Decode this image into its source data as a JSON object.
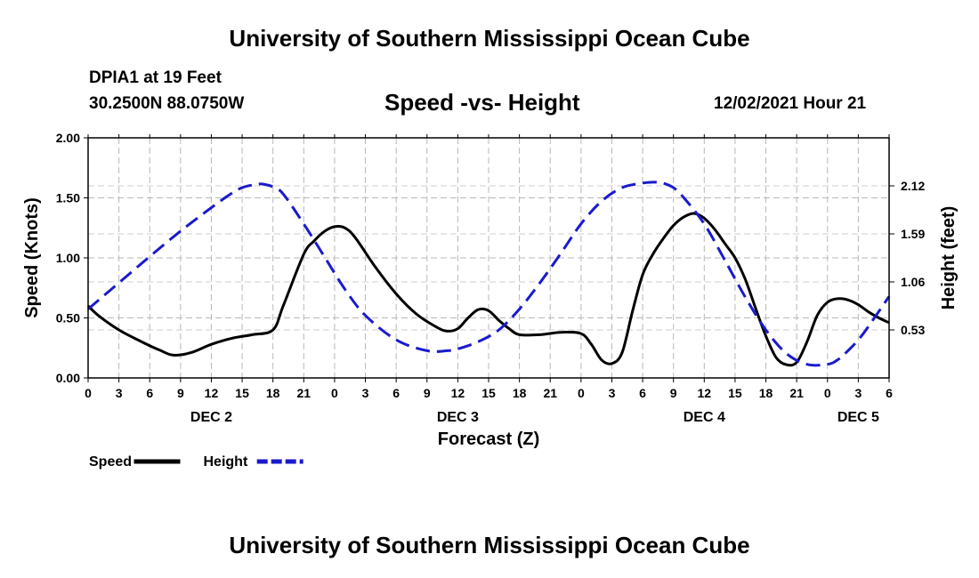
{
  "header": {
    "title": "University of Southern Mississippi Ocean Cube",
    "station": "DPIA1 at 19 Feet",
    "coords": "30.2500N  88.0750W",
    "subtitle": "Speed -vs- Height",
    "datetime": "12/02/2021 Hour 21"
  },
  "footer": {
    "title": "University of Southern Mississippi Ocean Cube"
  },
  "chart_data": {
    "type": "line",
    "xlabel": "Forecast (Z)",
    "ylabel": "Speed (Knots)",
    "ylabel_right": "Height (feet)",
    "xlim": [
      0,
      78
    ],
    "ylim": [
      0,
      2.0
    ],
    "ylim_right": [
      0,
      2.65
    ],
    "grid": true,
    "x_ticks": [
      0,
      3,
      6,
      9,
      12,
      15,
      18,
      21,
      24,
      27,
      30,
      33,
      36,
      39,
      42,
      45,
      48,
      51,
      54,
      57,
      60,
      63,
      66,
      69,
      72,
      75,
      78
    ],
    "x_tick_labels": [
      "0",
      "3",
      "6",
      "9",
      "12",
      "15",
      "18",
      "21",
      "0",
      "3",
      "6",
      "9",
      "12",
      "15",
      "18",
      "21",
      "0",
      "3",
      "6",
      "9",
      "12",
      "15",
      "18",
      "21",
      "0",
      "3",
      "6"
    ],
    "y_ticks": [
      0,
      0.5,
      1.0,
      1.5,
      2.0
    ],
    "y_tick_labels": [
      "0.00",
      "0.50",
      "1.00",
      "1.50",
      "2.00"
    ],
    "y_right_ticks": [
      0.53,
      1.06,
      1.59,
      2.12
    ],
    "y_right_tick_labels": [
      "0.53",
      "1.06",
      "1.59",
      "2.12"
    ],
    "day_labels": [
      {
        "x": 12,
        "label": "DEC 2"
      },
      {
        "x": 36,
        "label": "DEC 3"
      },
      {
        "x": 60,
        "label": "DEC 4"
      },
      {
        "x": 75,
        "label": "DEC 5"
      }
    ],
    "series": [
      {
        "name": "Speed",
        "axis": "left",
        "color": "#000000",
        "style": "solid",
        "x": [
          0,
          1,
          3,
          5,
          7,
          8.3,
          10,
          12,
          14,
          16,
          18,
          19,
          21,
          22,
          23,
          24,
          25,
          26,
          28,
          30,
          32,
          34,
          35,
          36,
          37,
          38,
          39,
          40,
          41,
          42,
          44,
          46,
          48,
          49,
          50,
          51,
          52,
          53,
          54,
          55,
          56,
          57,
          58,
          59,
          60,
          61,
          62,
          63,
          64,
          65,
          66,
          67,
          68,
          69,
          70,
          71,
          72,
          73,
          74,
          75,
          76,
          77,
          78
        ],
        "values": [
          0.6,
          0.52,
          0.4,
          0.31,
          0.23,
          0.19,
          0.21,
          0.28,
          0.33,
          0.36,
          0.4,
          0.6,
          1.03,
          1.14,
          1.22,
          1.26,
          1.25,
          1.17,
          0.92,
          0.7,
          0.53,
          0.42,
          0.39,
          0.41,
          0.5,
          0.57,
          0.56,
          0.48,
          0.41,
          0.36,
          0.36,
          0.38,
          0.37,
          0.28,
          0.15,
          0.12,
          0.21,
          0.55,
          0.86,
          1.03,
          1.16,
          1.27,
          1.34,
          1.37,
          1.33,
          1.24,
          1.12,
          1.0,
          0.82,
          0.58,
          0.35,
          0.17,
          0.11,
          0.13,
          0.3,
          0.52,
          0.63,
          0.66,
          0.65,
          0.61,
          0.55,
          0.5,
          0.46
        ]
      },
      {
        "name": "Height",
        "axis": "right",
        "color": "#1a1acc",
        "style": "dashed",
        "x": [
          0,
          3,
          6,
          9,
          12,
          14,
          15,
          16,
          16.6,
          17,
          18,
          19,
          21,
          23,
          25,
          27,
          30,
          33,
          35,
          36,
          38,
          40,
          42,
          44,
          46,
          48,
          50,
          52,
          54,
          55,
          55.5,
          56,
          57,
          58,
          60,
          62,
          64,
          66,
          68,
          70,
          72,
          73,
          74,
          75,
          76,
          78
        ],
        "values": [
          0.76,
          1.05,
          1.34,
          1.62,
          1.88,
          2.04,
          2.1,
          2.13,
          2.14,
          2.14,
          2.11,
          2.03,
          1.7,
          1.34,
          0.98,
          0.69,
          0.42,
          0.3,
          0.3,
          0.32,
          0.4,
          0.53,
          0.76,
          1.05,
          1.37,
          1.7,
          1.95,
          2.1,
          2.15,
          2.16,
          2.16,
          2.15,
          2.1,
          1.99,
          1.7,
          1.3,
          0.89,
          0.53,
          0.27,
          0.15,
          0.15,
          0.2,
          0.3,
          0.42,
          0.57,
          0.9
        ]
      }
    ],
    "legend": [
      {
        "name": "Speed",
        "color": "#000000",
        "style": "solid"
      },
      {
        "name": "Height",
        "color": "#1a1acc",
        "style": "dashed"
      }
    ],
    "legend_position": "bottom-left"
  }
}
